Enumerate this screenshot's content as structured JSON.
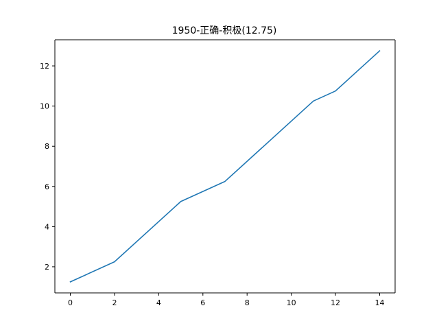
{
  "chart_data": {
    "type": "line",
    "title": "1950-正确-积极(12.75)",
    "xlabel": "",
    "ylabel": "",
    "x": [
      0,
      2,
      5,
      7,
      11,
      12,
      14
    ],
    "series": [
      {
        "values": [
          1.25,
          2.25,
          5.25,
          6.25,
          10.25,
          10.75,
          12.75
        ],
        "color": "#1f77b4"
      }
    ],
    "xlim": [
      -0.7,
      14.7
    ],
    "ylim": [
      0.7,
      13.3
    ],
    "xticks": [
      0,
      2,
      4,
      6,
      8,
      10,
      12,
      14
    ],
    "yticks": [
      2,
      4,
      6,
      8,
      10,
      12
    ],
    "grid": false,
    "legend": "none"
  }
}
